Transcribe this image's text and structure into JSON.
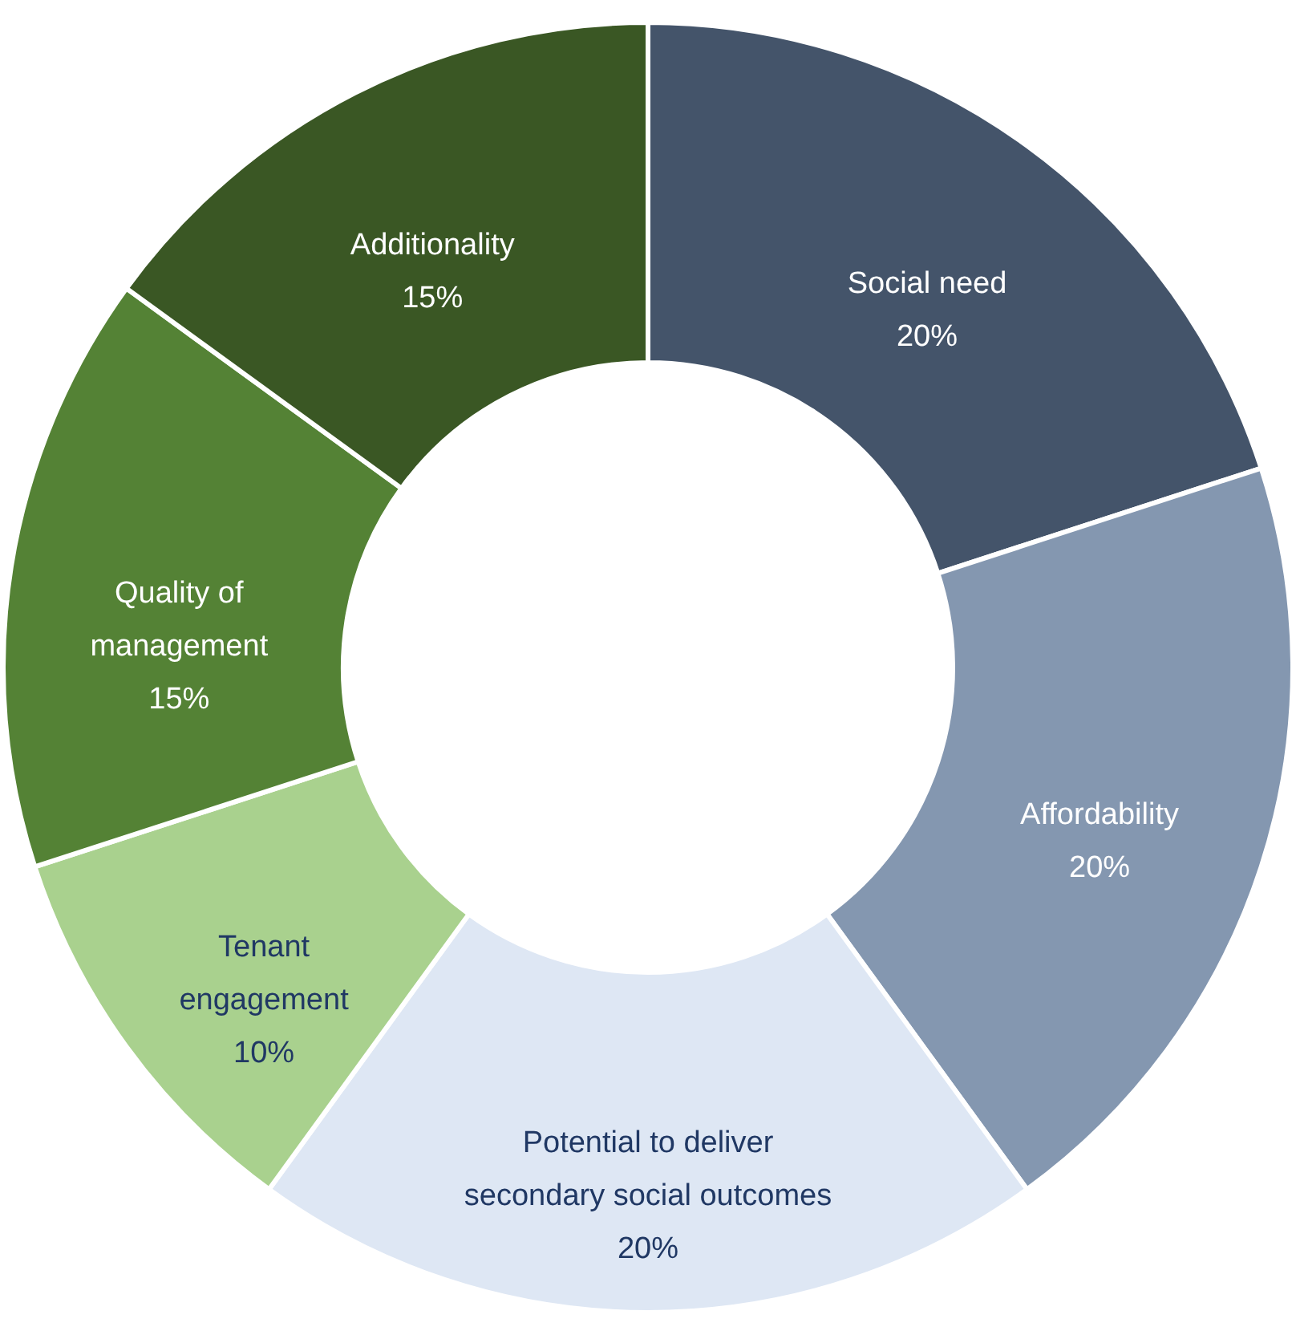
{
  "chart_data": {
    "type": "donut",
    "categories": [
      "Social need",
      "Affordability",
      "Potential to deliver secondary social  outcomes",
      "Tenant engagement",
      "Quality of management",
      "Additionality"
    ],
    "values": [
      20,
      20,
      20,
      10,
      15,
      15
    ],
    "value_labels": [
      "20%",
      "20%",
      "20%",
      "10%",
      "15%",
      "15%"
    ],
    "colors": [
      "#44546a",
      "#8497b0",
      "#dee7f4",
      "#a9d18e",
      "#548235",
      "#3a5724"
    ]
  }
}
